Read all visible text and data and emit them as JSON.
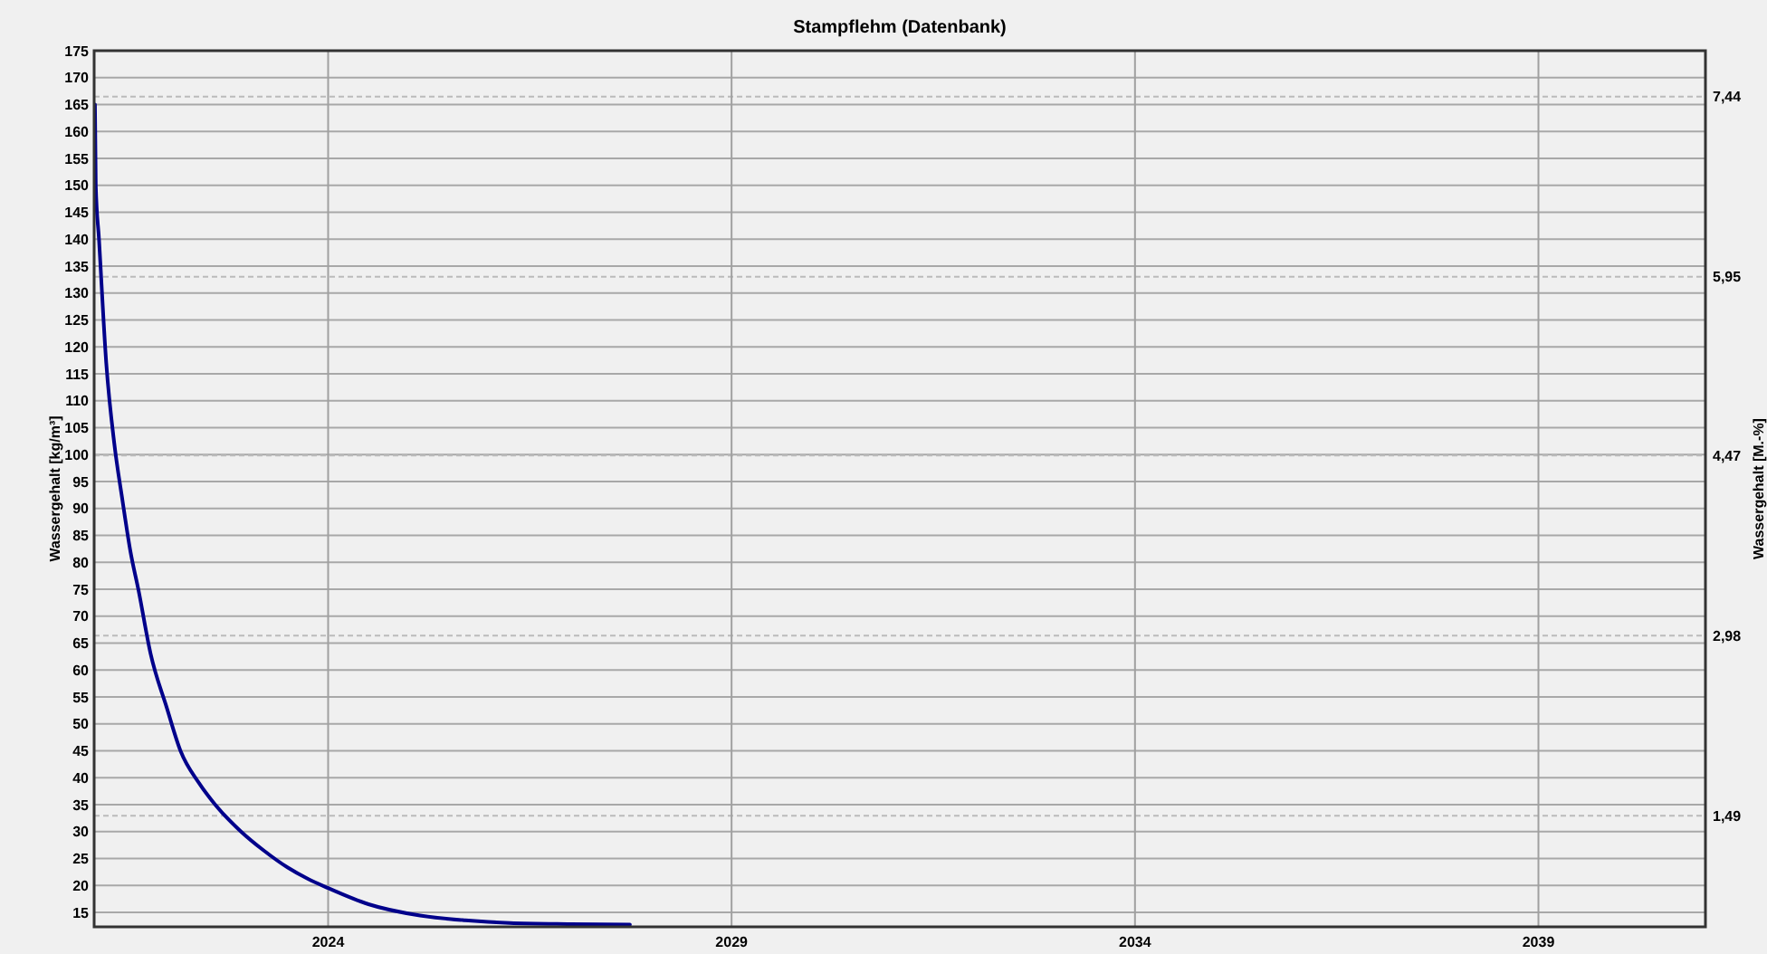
{
  "chart_data": {
    "type": "line",
    "title": "Stampflehm (Datenbank)",
    "ylabel": "Wassergehalt [kg/m³]",
    "y2label": "Wassergehalt [M.-%]",
    "xlim": [
      2021.1,
      2041.07
    ],
    "xticks": [
      2024,
      2029,
      2034,
      2039
    ],
    "ylim": [
      12.3,
      175
    ],
    "yticks": [
      15,
      20,
      25,
      30,
      35,
      40,
      45,
      50,
      55,
      60,
      65,
      70,
      75,
      80,
      85,
      90,
      95,
      100,
      105,
      110,
      115,
      120,
      125,
      130,
      135,
      140,
      145,
      150,
      155,
      160,
      165,
      170,
      175
    ],
    "y2lim": [
      0.57,
      7.82
    ],
    "y2ticks": [
      {
        "value": 1.49,
        "label": "1,49"
      },
      {
        "value": 2.98,
        "label": "2,98"
      },
      {
        "value": 4.47,
        "label": "4,47"
      },
      {
        "value": 5.95,
        "label": "5,95"
      },
      {
        "value": 7.44,
        "label": "7,44"
      }
    ],
    "grid": true,
    "marker": "none",
    "line_style": "solid",
    "series": [
      {
        "color": "#00008b",
        "x": [
          2021.11,
          2021.12,
          2021.16,
          2021.25,
          2021.35,
          2021.45,
          2021.55,
          2021.65,
          2021.8,
          2022.0,
          2022.17,
          2022.4,
          2022.6,
          2022.92,
          2023.2,
          2023.5,
          2023.75,
          2024.0,
          2024.5,
          2025.14,
          2025.7,
          2026.25,
          2027.0,
          2027.74
        ],
        "values": [
          165,
          150,
          140,
          117,
          102,
          91.6,
          82,
          74.8,
          63,
          53,
          45,
          39,
          35,
          30,
          26.5,
          23.3,
          21.2,
          19.5,
          16.5,
          14.4,
          13.5,
          13,
          12.8,
          12.7
        ]
      }
    ]
  }
}
